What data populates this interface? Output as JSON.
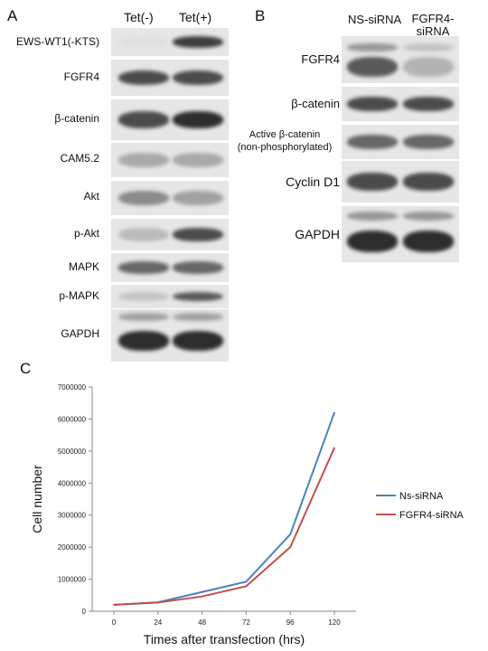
{
  "panelA": {
    "letter": "A",
    "columns": [
      "Tet(-)",
      "Tet(+)"
    ],
    "rows": [
      {
        "label": "EWS-WT1(-KTS)",
        "bands": [
          0.05,
          0.9
        ]
      },
      {
        "label": "FGFR4",
        "bands": [
          0.85,
          0.85
        ]
      },
      {
        "label": "β-catenin",
        "bands": [
          0.85,
          0.95
        ]
      },
      {
        "label": "CAM5.2",
        "bands": [
          0.45,
          0.45
        ]
      },
      {
        "label": "Akt",
        "bands": [
          0.6,
          0.5
        ]
      },
      {
        "label": "p-Akt",
        "bands": [
          0.35,
          0.85
        ]
      },
      {
        "label": "MAPK",
        "bands": [
          0.75,
          0.75
        ]
      },
      {
        "label": "p-MAPK",
        "bands": [
          0.3,
          0.8
        ]
      },
      {
        "label": "GAPDH",
        "bands": [
          0.95,
          0.95
        ]
      }
    ]
  },
  "panelB": {
    "letter": "B",
    "columns": [
      "NS-siRNA",
      "FGFR4-siRNA"
    ],
    "rows": [
      {
        "label": "FGFR4",
        "bands": [
          0.8,
          0.4
        ]
      },
      {
        "label": "β-catenin",
        "bands": [
          0.85,
          0.85
        ]
      },
      {
        "label_line1": "Active β-catenin",
        "label_line2": "(non-phosphorylated)",
        "bands": [
          0.75,
          0.75
        ]
      },
      {
        "label": "Cyclin D1",
        "bands": [
          0.85,
          0.85
        ]
      },
      {
        "label": "GAPDH",
        "bands": [
          0.95,
          0.95
        ]
      }
    ]
  },
  "panelC": {
    "letter": "C",
    "chart_data": {
      "type": "line",
      "x": [
        0,
        24,
        48,
        72,
        96,
        120
      ],
      "series": [
        {
          "name": "Ns-siRNA",
          "values": [
            200000,
            280000,
            600000,
            920000,
            2400000,
            6200000
          ],
          "color": "#4f81bd"
        },
        {
          "name": "FGFR4-siRNA",
          "values": [
            200000,
            270000,
            460000,
            780000,
            2000000,
            5100000
          ],
          "color": "#c0504d"
        }
      ],
      "xlabel": "Times after transfection (hrs)",
      "ylabel": "Cell number",
      "ylim": [
        0,
        7000000
      ],
      "yticks": [
        "0",
        "1000000",
        "2000000",
        "3000000",
        "4000000",
        "5000000",
        "6000000",
        "7000000"
      ],
      "xticks": [
        "0",
        "24",
        "48",
        "72",
        "96",
        "120"
      ],
      "grid": false,
      "legend": "right"
    }
  }
}
